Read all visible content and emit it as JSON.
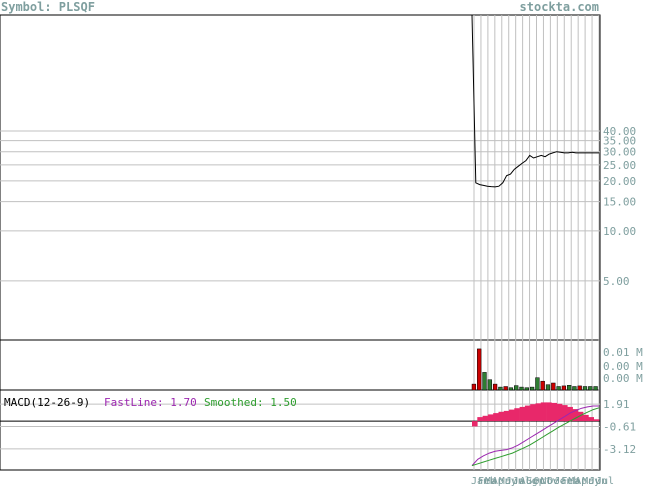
{
  "header": {
    "symbol_label": "Symbol: PLSQF",
    "site": "stockta.com"
  },
  "colors": {
    "background": "#ffffff",
    "frame": "#000000",
    "grid": "#c0c0c0",
    "header_text": "#7f9f9f",
    "axis_text": "#7f9f9f",
    "volume_up": "#2e7d32",
    "volume_down": "#cc0000",
    "macd_fast": "#9c27b0",
    "macd_smoothed": "#2e9e2e",
    "macd_histogram": "#e8286a"
  },
  "chart_data": [
    {
      "type": "line",
      "panel": "price",
      "y_scale": "log",
      "ylim": [
        2.2,
        200
      ],
      "y_ticks": [
        "40.00",
        "35.00",
        "30.00",
        "25.00",
        "20.00",
        "15.00",
        "10.00",
        "5.00"
      ],
      "x_ticks": [
        "Jan",
        "Feb",
        "Mar",
        "Apr",
        "May",
        "Jun",
        "Jul",
        "Aug",
        "Sep",
        "Oct",
        "Nov",
        "Dec",
        "Jan",
        "Feb",
        "Mar",
        "Apr",
        "May",
        "Jun",
        "Jul"
      ],
      "series": [
        {
          "values": [
            200,
            19.5,
            19.0,
            18.8,
            18.6,
            18.5,
            18.4,
            18.6,
            19.5,
            21.5,
            22.0,
            23.5,
            24.5,
            25.5,
            26.5,
            28.5,
            27.5,
            28.0,
            28.5,
            28.0,
            29.0,
            29.5,
            30.0,
            29.8,
            29.5,
            29.5,
            29.8,
            29.5,
            29.5,
            29.5,
            29.5,
            29.5,
            29.5,
            29.5
          ]
        }
      ]
    },
    {
      "type": "bar",
      "panel": "volume",
      "y_ticks": [
        "0.01 M",
        "0.00 M",
        "0.00 M"
      ],
      "values": [
        0.002,
        0.014,
        0.006,
        0.0035,
        0.002,
        0.001,
        0.0012,
        0.0008,
        0.0015,
        0.001,
        0.0008,
        0.001,
        0.0042,
        0.003,
        0.0018,
        0.0024,
        0.0012,
        0.0014,
        0.0016,
        0.0012,
        0.0014,
        0.0012,
        0.0012,
        0.0012
      ],
      "directions": [
        "down",
        "down",
        "up",
        "up",
        "down",
        "up",
        "down",
        "up",
        "up",
        "up",
        "up",
        "up",
        "up",
        "down",
        "up",
        "down",
        "up",
        "down",
        "up",
        "up",
        "down",
        "up",
        "up",
        "up"
      ]
    },
    {
      "type": "line",
      "panel": "macd",
      "title": "MACD(12-26-9)",
      "fast_label": "FastLine: 1.70",
      "smoothed_label": "Smoothed: 1.50",
      "ylim": [
        -5.5,
        3.5
      ],
      "y_ticks": [
        "1.91",
        "-0.61",
        "-3.12"
      ],
      "series": [
        {
          "name": "FastLine",
          "values": [
            -5.0,
            -4.3,
            -3.9,
            -3.6,
            -3.4,
            -3.3,
            -3.2,
            -3.0,
            -2.7,
            -2.3,
            -1.9,
            -1.5,
            -1.1,
            -0.7,
            -0.3,
            0.1,
            0.5,
            0.9,
            1.2,
            1.45,
            1.6,
            1.7,
            1.7
          ]
        },
        {
          "name": "Smoothed",
          "values": [
            -5.0,
            -4.8,
            -4.6,
            -4.4,
            -4.2,
            -4.0,
            -3.8,
            -3.6,
            -3.3,
            -3.0,
            -2.7,
            -2.3,
            -1.9,
            -1.5,
            -1.1,
            -0.7,
            -0.35,
            0.0,
            0.35,
            0.7,
            1.0,
            1.3,
            1.5
          ]
        },
        {
          "name": "Histogram",
          "values": [
            -0.6,
            0.45,
            0.6,
            0.75,
            0.9,
            1.05,
            1.15,
            1.3,
            1.45,
            1.6,
            1.75,
            1.9,
            2.0,
            2.1,
            2.1,
            2.05,
            1.95,
            1.8,
            1.6,
            1.35,
            1.05,
            0.7,
            0.45,
            0.2
          ]
        }
      ]
    }
  ]
}
